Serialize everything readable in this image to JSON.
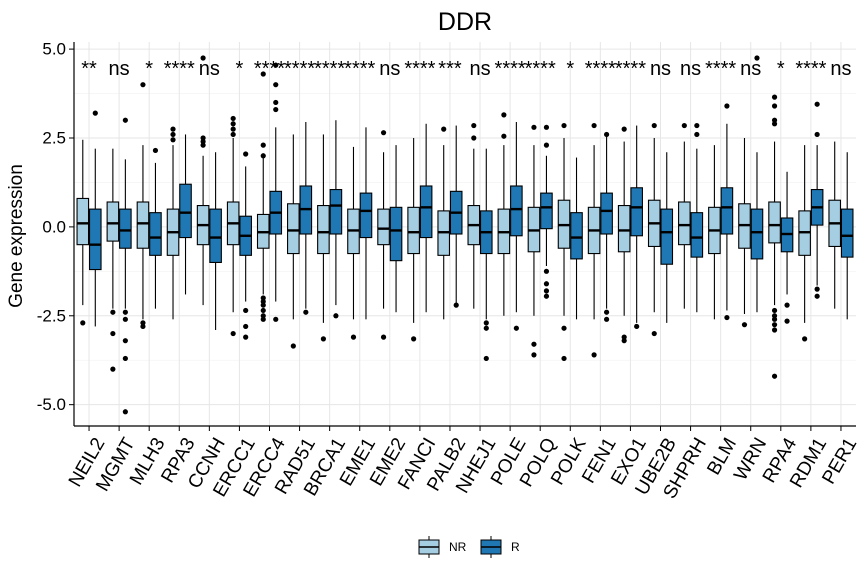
{
  "chart_data": {
    "type": "boxplot",
    "title": "DDR",
    "ylabel": "Gene expression",
    "xlabel": "",
    "ylim": [
      -5.6,
      5.2
    ],
    "yticks": [
      5.0,
      2.5,
      0.0,
      -2.5,
      -5.0
    ],
    "ytick_labels": [
      "5.0",
      "2.5",
      "0.0",
      "-2.5",
      "-5.0"
    ],
    "grid": "on",
    "legend_position": "bottom",
    "groups": [
      {
        "name": "NR",
        "color": "#a6cee3"
      },
      {
        "name": "R",
        "color": "#1f78b4"
      }
    ],
    "genes": [
      {
        "name": "NEIL2",
        "sig": "**",
        "NR": {
          "q1": -0.5,
          "median": 0.1,
          "q3": 0.8,
          "wlow": -2.2,
          "whigh": 2.45,
          "outliers": [
            -2.7
          ]
        },
        "R": {
          "q1": -1.2,
          "median": -0.5,
          "q3": 0.5,
          "wlow": -2.8,
          "whigh": 2.2,
          "outliers": [
            3.2
          ]
        }
      },
      {
        "name": "MGMT",
        "sig": "ns",
        "NR": {
          "q1": -0.4,
          "median": 0.1,
          "q3": 0.7,
          "wlow": -2.3,
          "whigh": 2.2,
          "outliers": [
            -2.4,
            -3.0,
            -4.0
          ]
        },
        "R": {
          "q1": -0.6,
          "median": -0.1,
          "q3": 0.5,
          "wlow": -2.3,
          "whigh": 1.9,
          "outliers": [
            3.0,
            -2.4,
            -2.6,
            -3.2,
            -3.7,
            -5.2
          ]
        }
      },
      {
        "name": "MLH3",
        "sig": "*",
        "NR": {
          "q1": -0.6,
          "median": 0.1,
          "q3": 0.7,
          "wlow": -2.6,
          "whigh": 2.3,
          "outliers": [
            4.0,
            -2.7,
            -2.8
          ]
        },
        "R": {
          "q1": -0.8,
          "median": -0.3,
          "q3": 0.4,
          "wlow": -2.3,
          "whigh": 1.8,
          "outliers": [
            2.15
          ]
        }
      },
      {
        "name": "RPA3",
        "sig": "****",
        "NR": {
          "q1": -0.8,
          "median": -0.15,
          "q3": 0.5,
          "wlow": -2.6,
          "whigh": 2.3,
          "outliers": [
            2.75,
            2.6,
            2.45
          ]
        },
        "R": {
          "q1": -0.3,
          "median": 0.4,
          "q3": 1.2,
          "wlow": -1.9,
          "whigh": 2.6,
          "outliers": []
        }
      },
      {
        "name": "CCNH",
        "sig": "ns",
        "NR": {
          "q1": -0.5,
          "median": 0.05,
          "q3": 0.6,
          "wlow": -2.2,
          "whigh": 2.0,
          "outliers": [
            4.75,
            2.5,
            2.4,
            2.3
          ]
        },
        "R": {
          "q1": -1.0,
          "median": -0.3,
          "q3": 0.5,
          "wlow": -2.9,
          "whigh": 2.1,
          "outliers": []
        }
      },
      {
        "name": "ERCC1",
        "sig": "*",
        "NR": {
          "q1": -0.5,
          "median": 0.1,
          "q3": 0.7,
          "wlow": -2.4,
          "whigh": 2.5,
          "outliers": [
            3.05,
            2.9,
            2.75,
            2.6,
            -3.0
          ]
        },
        "R": {
          "q1": -0.8,
          "median": -0.25,
          "q3": 0.3,
          "wlow": -2.1,
          "whigh": 1.7,
          "outliers": [
            2.05,
            -2.35,
            -2.8,
            -3.1
          ]
        }
      },
      {
        "name": "ERCC4",
        "sig": "****",
        "NR": {
          "q1": -0.6,
          "median": -0.15,
          "q3": 0.35,
          "wlow": -1.9,
          "whigh": 1.95,
          "outliers": [
            4.3,
            2.3,
            2.0,
            -2.0,
            -2.1,
            -2.2,
            -2.35,
            -2.5,
            -2.6
          ]
        },
        "R": {
          "q1": -0.2,
          "median": 0.4,
          "q3": 1.0,
          "wlow": -2.1,
          "whigh": 2.8,
          "outliers": [
            4.55,
            4.0,
            3.5,
            3.3,
            -2.6
          ]
        }
      },
      {
        "name": "RAD51",
        "sig": "****",
        "NR": {
          "q1": -0.75,
          "median": -0.1,
          "q3": 0.65,
          "wlow": -2.6,
          "whigh": 2.6,
          "outliers": [
            -3.35
          ]
        },
        "R": {
          "q1": -0.2,
          "median": 0.5,
          "q3": 1.15,
          "wlow": -2.3,
          "whigh": 2.95,
          "outliers": [
            -2.4
          ]
        }
      },
      {
        "name": "BRCA1",
        "sig": "****",
        "NR": {
          "q1": -0.75,
          "median": -0.15,
          "q3": 0.6,
          "wlow": -2.7,
          "whigh": 2.6,
          "outliers": [
            -3.15
          ]
        },
        "R": {
          "q1": -0.2,
          "median": 0.6,
          "q3": 1.05,
          "wlow": -2.2,
          "whigh": 3.0,
          "outliers": [
            -2.5
          ]
        }
      },
      {
        "name": "EME1",
        "sig": "****",
        "NR": {
          "q1": -0.75,
          "median": -0.1,
          "q3": 0.5,
          "wlow": -2.6,
          "whigh": 2.25,
          "outliers": [
            -3.1
          ]
        },
        "R": {
          "q1": -0.3,
          "median": 0.45,
          "q3": 0.95,
          "wlow": -2.6,
          "whigh": 2.8,
          "outliers": []
        }
      },
      {
        "name": "EME2",
        "sig": "ns",
        "NR": {
          "q1": -0.5,
          "median": -0.05,
          "q3": 0.5,
          "wlow": -2.3,
          "whigh": 2.1,
          "outliers": [
            2.65,
            -3.1
          ]
        },
        "R": {
          "q1": -0.95,
          "median": -0.1,
          "q3": 0.55,
          "wlow": -2.4,
          "whigh": 2.3,
          "outliers": []
        }
      },
      {
        "name": "FANCI",
        "sig": "****",
        "NR": {
          "q1": -0.75,
          "median": -0.15,
          "q3": 0.55,
          "wlow": -2.7,
          "whigh": 2.5,
          "outliers": [
            -3.15
          ]
        },
        "R": {
          "q1": -0.3,
          "median": 0.55,
          "q3": 1.15,
          "wlow": -2.4,
          "whigh": 2.9,
          "outliers": []
        }
      },
      {
        "name": "PALB2",
        "sig": "***",
        "NR": {
          "q1": -0.8,
          "median": -0.15,
          "q3": 0.45,
          "wlow": -2.6,
          "whigh": 2.3,
          "outliers": [
            2.75
          ]
        },
        "R": {
          "q1": -0.2,
          "median": 0.4,
          "q3": 1.0,
          "wlow": -2.2,
          "whigh": 2.85,
          "outliers": [
            -2.2
          ]
        }
      },
      {
        "name": "NHEJ1",
        "sig": "ns",
        "NR": {
          "q1": -0.5,
          "median": 0.05,
          "q3": 0.6,
          "wlow": -2.3,
          "whigh": 2.2,
          "outliers": [
            2.85,
            2.5
          ]
        },
        "R": {
          "q1": -0.75,
          "median": -0.15,
          "q3": 0.45,
          "wlow": -2.6,
          "whigh": 2.2,
          "outliers": [
            -2.7,
            -2.85,
            -3.7
          ]
        }
      },
      {
        "name": "POLE",
        "sig": "****",
        "NR": {
          "q1": -0.75,
          "median": -0.15,
          "q3": 0.5,
          "wlow": -2.5,
          "whigh": 2.3,
          "outliers": [
            3.15,
            2.55
          ]
        },
        "R": {
          "q1": -0.25,
          "median": 0.5,
          "q3": 1.15,
          "wlow": -2.4,
          "whigh": 2.95,
          "outliers": [
            -2.85
          ]
        }
      },
      {
        "name": "POLQ",
        "sig": "****",
        "NR": {
          "q1": -0.7,
          "median": -0.1,
          "q3": 0.55,
          "wlow": -2.5,
          "whigh": 2.3,
          "outliers": [
            2.8,
            -3.3,
            -3.6
          ]
        },
        "R": {
          "q1": -0.05,
          "median": 0.55,
          "q3": 0.95,
          "wlow": -1.1,
          "whigh": 2.0,
          "outliers": [
            2.8,
            2.3,
            -1.25,
            -1.6,
            -1.8,
            -1.95
          ]
        }
      },
      {
        "name": "POLK",
        "sig": "*",
        "NR": {
          "q1": -0.6,
          "median": 0.05,
          "q3": 0.75,
          "wlow": -2.5,
          "whigh": 2.5,
          "outliers": [
            2.85,
            -2.85,
            -3.7
          ]
        },
        "R": {
          "q1": -0.9,
          "median": -0.3,
          "q3": 0.4,
          "wlow": -2.6,
          "whigh": 1.95,
          "outliers": []
        }
      },
      {
        "name": "FEN1",
        "sig": "****",
        "NR": {
          "q1": -0.75,
          "median": -0.1,
          "q3": 0.55,
          "wlow": -2.6,
          "whigh": 2.3,
          "outliers": [
            2.85,
            -3.6
          ]
        },
        "R": {
          "q1": -0.2,
          "median": 0.45,
          "q3": 0.95,
          "wlow": -2.3,
          "whigh": 2.6,
          "outliers": [
            2.6,
            -2.4,
            -2.6
          ]
        }
      },
      {
        "name": "EXO1",
        "sig": "****",
        "NR": {
          "q1": -0.7,
          "median": -0.1,
          "q3": 0.6,
          "wlow": -2.5,
          "whigh": 2.4,
          "outliers": [
            2.75,
            -3.1,
            -3.2
          ]
        },
        "R": {
          "q1": -0.25,
          "median": 0.55,
          "q3": 1.1,
          "wlow": -2.7,
          "whigh": 2.85,
          "outliers": [
            -2.8
          ]
        }
      },
      {
        "name": "UBE2B",
        "sig": "ns",
        "NR": {
          "q1": -0.55,
          "median": 0.1,
          "q3": 0.75,
          "wlow": -2.4,
          "whigh": 2.5,
          "outliers": [
            2.85,
            -3.0
          ]
        },
        "R": {
          "q1": -1.05,
          "median": -0.15,
          "q3": 0.5,
          "wlow": -2.7,
          "whigh": 2.1,
          "outliers": []
        }
      },
      {
        "name": "SHPRH",
        "sig": "ns",
        "NR": {
          "q1": -0.5,
          "median": 0.05,
          "q3": 0.7,
          "wlow": -2.3,
          "whigh": 2.4,
          "outliers": [
            2.85
          ]
        },
        "R": {
          "q1": -0.85,
          "median": -0.3,
          "q3": 0.4,
          "wlow": -2.4,
          "whigh": 2.2,
          "outliers": [
            2.85,
            2.6
          ]
        }
      },
      {
        "name": "BLM",
        "sig": "****",
        "NR": {
          "q1": -0.75,
          "median": -0.1,
          "q3": 0.55,
          "wlow": -2.6,
          "whigh": 2.3,
          "outliers": []
        },
        "R": {
          "q1": -0.2,
          "median": 0.55,
          "q3": 1.1,
          "wlow": -2.35,
          "whigh": 2.9,
          "outliers": [
            3.4,
            -2.55
          ]
        }
      },
      {
        "name": "WRN",
        "sig": "ns",
        "NR": {
          "q1": -0.6,
          "median": 0.05,
          "q3": 0.65,
          "wlow": -2.45,
          "whigh": 2.5,
          "outliers": [
            -2.75
          ]
        },
        "R": {
          "q1": -0.9,
          "median": -0.15,
          "q3": 0.5,
          "wlow": -2.4,
          "whigh": 2.1,
          "outliers": [
            4.75
          ]
        }
      },
      {
        "name": "RPA4",
        "sig": "*",
        "NR": {
          "q1": -0.45,
          "median": 0.05,
          "q3": 0.7,
          "wlow": -2.2,
          "whigh": 2.4,
          "outliers": [
            3.65,
            3.4,
            3.0,
            2.9,
            -2.35,
            -2.5,
            -2.6,
            -2.75,
            -2.9,
            -4.2
          ]
        },
        "R": {
          "q1": -0.7,
          "median": -0.2,
          "q3": 0.25,
          "wlow": -1.9,
          "whigh": 1.55,
          "outliers": [
            -2.2,
            -2.65
          ]
        }
      },
      {
        "name": "RDM1",
        "sig": "****",
        "NR": {
          "q1": -0.8,
          "median": -0.15,
          "q3": 0.45,
          "wlow": -2.7,
          "whigh": 2.3,
          "outliers": [
            -3.15
          ]
        },
        "R": {
          "q1": 0.05,
          "median": 0.55,
          "q3": 1.05,
          "wlow": -1.65,
          "whigh": 2.3,
          "outliers": [
            3.45,
            2.6,
            -1.75,
            -1.95
          ]
        }
      },
      {
        "name": "PER1",
        "sig": "ns",
        "NR": {
          "q1": -0.55,
          "median": 0.1,
          "q3": 0.75,
          "wlow": -2.3,
          "whigh": 2.4,
          "outliers": []
        },
        "R": {
          "q1": -0.85,
          "median": -0.25,
          "q3": 0.5,
          "wlow": -2.6,
          "whigh": 2.1,
          "outliers": []
        }
      }
    ]
  }
}
